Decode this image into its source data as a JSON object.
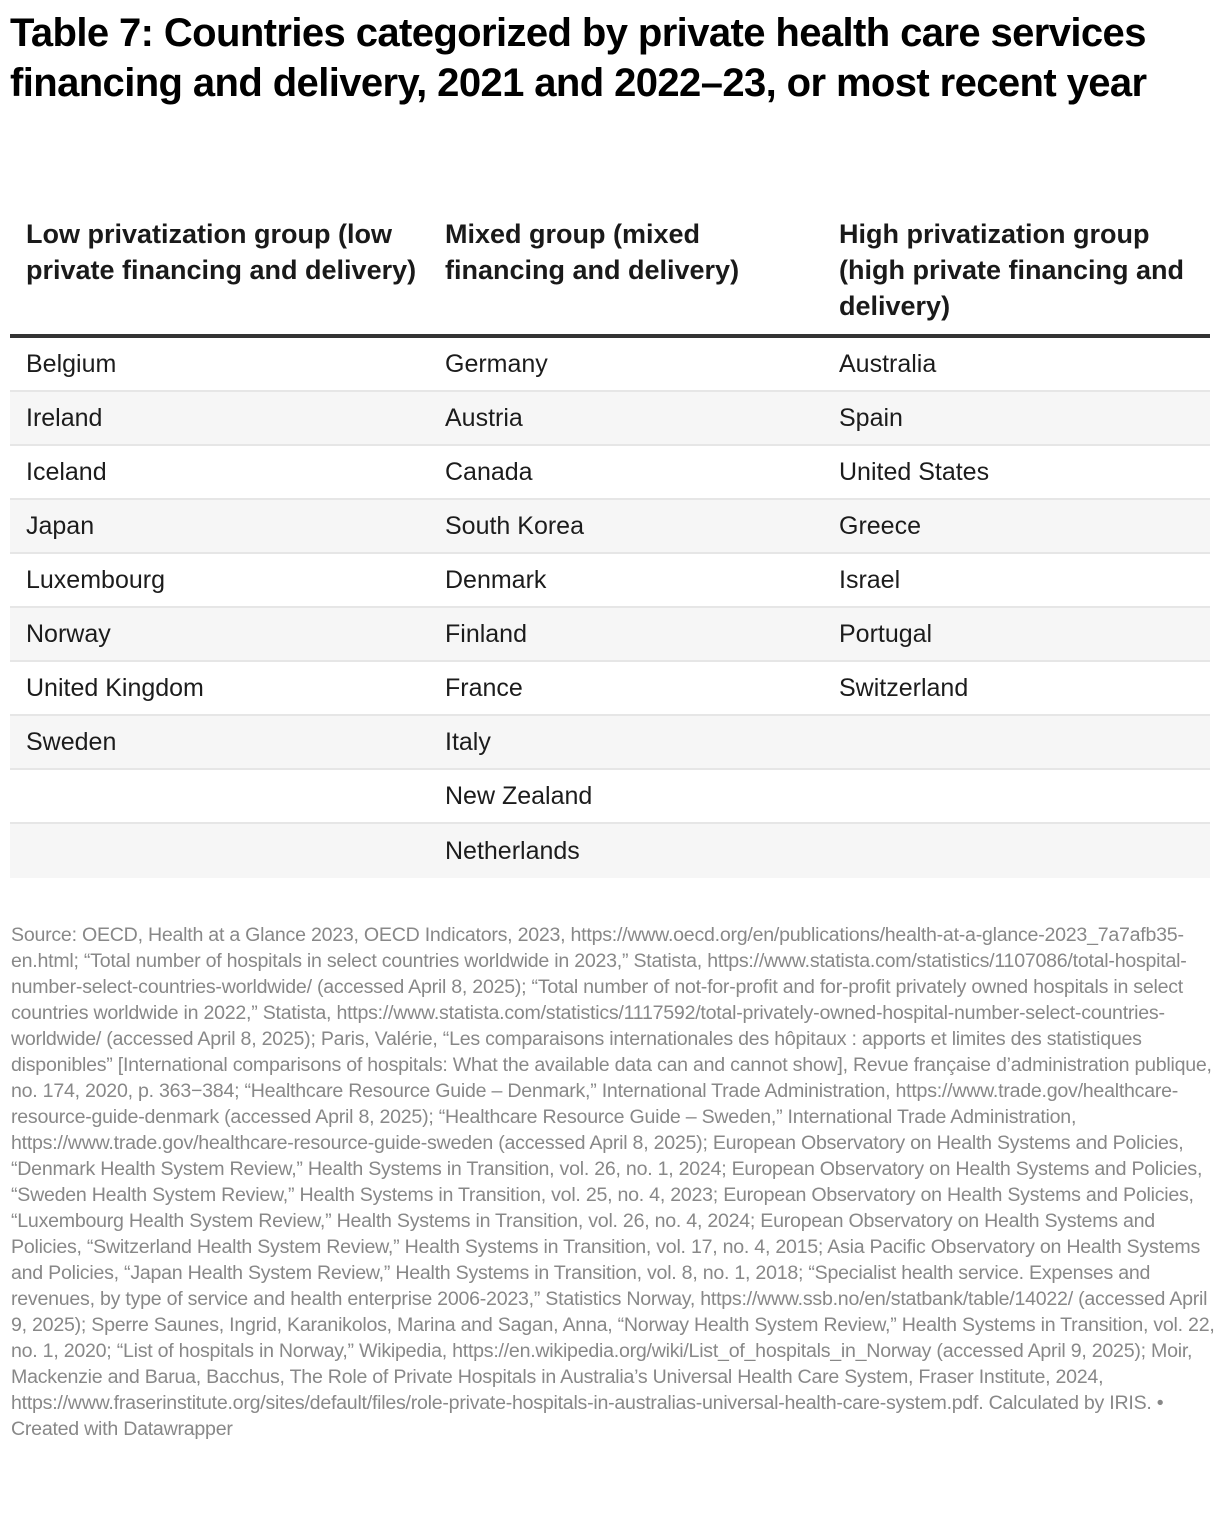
{
  "title": "Table 7: Countries categorized by private health care services financing and delivery, 2021 and 2022–23, or most recent year",
  "table": {
    "headers": [
      "Low privatization group (low private financing and delivery)",
      "Mixed group (mixed financing and delivery)",
      "High privatization group (high private financing and delivery)"
    ],
    "rows": [
      [
        "Belgium",
        "Germany",
        "Australia"
      ],
      [
        "Ireland",
        "Austria",
        "Spain"
      ],
      [
        "Iceland",
        "Canada",
        "United States"
      ],
      [
        "Japan",
        "South Korea",
        "Greece"
      ],
      [
        "Luxembourg",
        "Denmark",
        "Israel"
      ],
      [
        "Norway",
        "Finland",
        "Portugal"
      ],
      [
        "United Kingdom",
        "France",
        "Switzerland"
      ],
      [
        "Sweden",
        "Italy",
        ""
      ],
      [
        "",
        "New Zealand",
        ""
      ],
      [
        "",
        "Netherlands",
        ""
      ]
    ]
  },
  "footer": {
    "source": "Source: OECD, Health at a Glance 2023, OECD Indicators, 2023, https://www.oecd.org/en/publications/health-at-a-glance-2023_7a7afb35-en.html; “Total number of hospitals in select countries worldwide in 2023,” Statista, https://www.statista.com/statistics/1107086/total-hospital-number-select-countries-worldwide/ (accessed April 8, 2025); “Total number of not-for-profit and for-profit privately owned hospitals in select countries worldwide in 2022,” Statista, https://www.statista.com/statistics/1117592/total-privately-owned-hospital-number-select-countries-worldwide/ (accessed April 8, 2025); Paris, Valérie, “Les comparaisons internationales des hôpitaux : apports et limites des statistiques disponibles” [International comparisons of hospitals: What the available data can and cannot show], Revue française d’administration publique, no. 174, 2020, p. 363−384; “Healthcare Resource Guide – Denmark,” International Trade Administration, https://www.trade.gov/healthcare-resource-guide-denmark (accessed April 8, 2025); “Healthcare Resource Guide – Sweden,” International Trade Administration, https://www.trade.gov/healthcare-resource-guide-sweden (accessed April 8, 2025); European Observatory on Health Systems and Policies, “Denmark Health System Review,” Health Systems in Transition, vol. 26, no. 1, 2024; European Observatory on Health Systems and Policies, “Sweden Health System Review,” Health Systems in Transition, vol. 25, no. 4, 2023; European Observatory on Health Systems and Policies, “Luxembourg Health System Review,” Health Systems in Transition, vol. 26, no. 4, 2024; European Observatory on Health Systems and Policies, “Switzerland Health System Review,” Health Systems in Transition, vol. 17, no. 4, 2015; Asia Pacific Observatory on Health Systems and Policies, “Japan Health System Review,” Health Systems in Transition, vol. 8, no. 1, 2018; “Specialist health service. Expenses and revenues, by type of service and health enterprise 2006-2023,” Statistics Norway, https://www.ssb.no/en/statbank/table/14022/ (accessed April 9, 2025); Sperre Saunes, Ingrid, Karanikolos, Marina and Sagan, Anna, “Norway Health System Review,” Health Systems in Transition, vol. 22, no. 1, 2020; “List of hospitals in Norway,” Wikipedia, https://en.wikipedia.org/wiki/List_of_hospitals_in_Norway (accessed April 9, 2025); Moir, Mackenzie and Barua, Bacchus, The Role of Private Hospitals in Australia’s Universal Health Care System, Fraser Institute, 2024, https://www.fraserinstitute.org/sites/default/files/role-private-hospitals-in-australias-universal-health-care-system.pdf. Calculated by IRIS.",
    "separator": " • ",
    "credit": "Created with Datawrapper"
  }
}
